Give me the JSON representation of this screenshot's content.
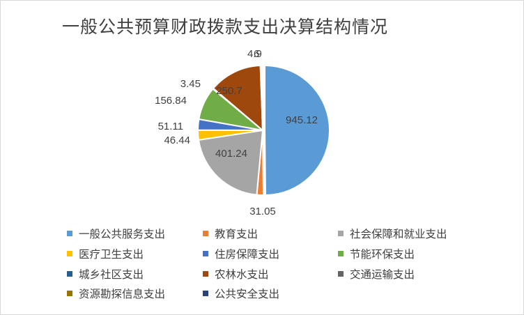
{
  "title": "一般公共预算财政拨款支出决算结构情况",
  "chart_data": {
    "type": "pie",
    "title": "一般公共预算财政拨款支出决算结构情况",
    "legend_position": "bottom",
    "series": [
      {
        "name": "一般公共服务支出",
        "value": 945.12,
        "color": "#5B9BD5",
        "label": "945.12"
      },
      {
        "name": "教育支出",
        "value": 31.05,
        "color": "#ED7D31",
        "label": "31.05"
      },
      {
        "name": "社会保障和就业支出",
        "value": 401.24,
        "color": "#A5A5A5",
        "label": "401.24"
      },
      {
        "name": "医疗卫生支出",
        "value": 46.44,
        "color": "#FFC000",
        "label": "46.44"
      },
      {
        "name": "住房保障支出",
        "value": 51.11,
        "color": "#4472C4",
        "label": "51.11"
      },
      {
        "name": "节能环保支出",
        "value": 156.84,
        "color": "#70AD47",
        "label": "156.84"
      },
      {
        "name": "城乡社区支出",
        "value": 3.45,
        "color": "#255E91",
        "label": "3.45"
      },
      {
        "name": "农林水支出",
        "value": 250.7,
        "color": "#9E480E",
        "label": "250.7"
      },
      {
        "name": "交通运输支出",
        "value": 4.9,
        "color": "#636363",
        "label": "4.9"
      },
      {
        "name": "资源勘探信息支出",
        "value": 6.0,
        "color": "#997300",
        "label": "6"
      },
      {
        "name": "公共安全支出",
        "value": 0,
        "color": "#264478",
        "label": ""
      }
    ]
  }
}
